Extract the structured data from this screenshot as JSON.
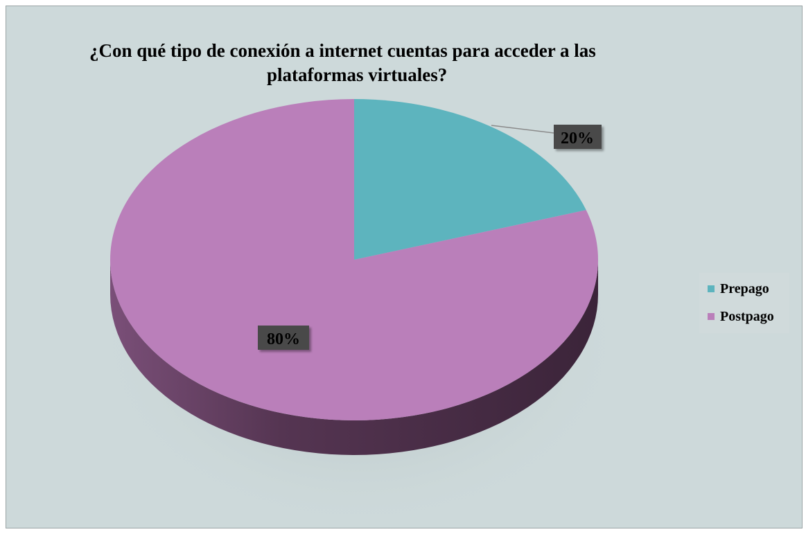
{
  "chart_data": {
    "type": "pie",
    "title": "¿Con qué tipo de conexión a internet cuentas para acceder a las plataformas virtuales?",
    "title_lines": [
      "¿Con qué tipo de conexión a internet cuentas para acceder a las",
      "plataformas virtuales?"
    ],
    "categories": [
      "Prepago",
      "Postpago"
    ],
    "values": [
      20,
      80
    ],
    "labels": [
      "20%",
      "80%"
    ],
    "colors": [
      "#5db4be",
      "#ba7fba"
    ],
    "legend_position": "right",
    "style": "3d"
  }
}
